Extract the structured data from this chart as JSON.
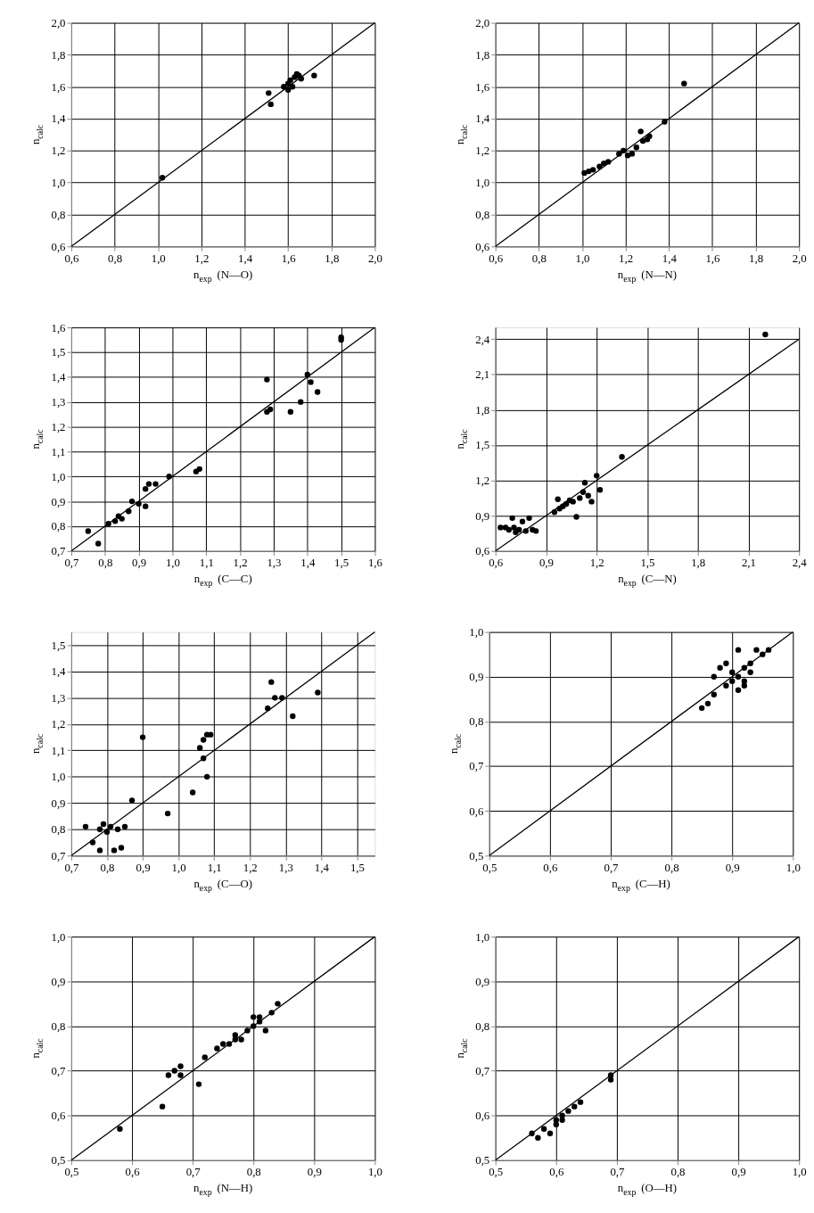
{
  "chart_data": [
    {
      "type": "scatter",
      "xlabel": "n$_{exp}$ (N—O)",
      "ylabel": "n$_{calc}$",
      "xlim": [
        0.6,
        2.0
      ],
      "ylim": [
        0.6,
        2.0
      ],
      "xticks": [
        {
          "value": 0.6,
          "label": "0,6"
        },
        {
          "value": 0.8,
          "label": "0,8"
        },
        {
          "value": 1.0,
          "label": "1,0"
        },
        {
          "value": 1.2,
          "label": "1,2"
        },
        {
          "value": 1.4,
          "label": "1,4"
        },
        {
          "value": 1.6,
          "label": "1,6"
        },
        {
          "value": 1.8,
          "label": "1,8"
        },
        {
          "value": 2.0,
          "label": "2,0"
        }
      ],
      "yticks": [
        {
          "value": 0.6,
          "label": "0,6"
        },
        {
          "value": 0.8,
          "label": "0,8"
        },
        {
          "value": 1.0,
          "label": "1,0"
        },
        {
          "value": 1.2,
          "label": "1,2"
        },
        {
          "value": 1.4,
          "label": "1,4"
        },
        {
          "value": 1.6,
          "label": "1,6"
        },
        {
          "value": 1.8,
          "label": "1,8"
        },
        {
          "value": 2.0,
          "label": "2,0"
        }
      ],
      "grid": true,
      "series": [
        {
          "marker": "circle",
          "color": "#000000",
          "x": [
            1.02,
            1.51,
            1.52,
            1.58,
            1.6,
            1.61,
            1.62,
            1.63,
            1.64,
            1.65,
            1.66,
            1.72,
            1.6
          ],
          "values": [
            1.03,
            1.56,
            1.49,
            1.6,
            1.62,
            1.64,
            1.6,
            1.66,
            1.68,
            1.67,
            1.65,
            1.67,
            1.58
          ]
        },
        {
          "type": "line",
          "color": "#000000",
          "line_style": "solid",
          "x": [
            0.6,
            2.0
          ],
          "values": [
            0.6,
            2.0
          ]
        }
      ]
    },
    {
      "type": "scatter",
      "xlabel": "n$_{exp}$ (N—N)",
      "ylabel": "n$_{calc}$",
      "xlim": [
        0.6,
        2.0
      ],
      "ylim": [
        0.6,
        2.0
      ],
      "xticks": [
        {
          "value": 0.6,
          "label": "0,6"
        },
        {
          "value": 0.8,
          "label": "0,8"
        },
        {
          "value": 1.0,
          "label": "1,0"
        },
        {
          "value": 1.2,
          "label": "1,2"
        },
        {
          "value": 1.4,
          "label": "1,4"
        },
        {
          "value": 1.6,
          "label": "1,6"
        },
        {
          "value": 1.8,
          "label": "1,8"
        },
        {
          "value": 2.0,
          "label": "2,0"
        }
      ],
      "yticks": [
        {
          "value": 0.6,
          "label": "0,6"
        },
        {
          "value": 0.8,
          "label": "0,8"
        },
        {
          "value": 1.0,
          "label": "1,0"
        },
        {
          "value": 1.2,
          "label": "1,2"
        },
        {
          "value": 1.4,
          "label": "1,4"
        },
        {
          "value": 1.6,
          "label": "1,6"
        },
        {
          "value": 1.8,
          "label": "1,8"
        },
        {
          "value": 2.0,
          "label": "2,0"
        }
      ],
      "grid": true,
      "series": [
        {
          "marker": "circle",
          "color": "#000000",
          "x": [
            1.01,
            1.03,
            1.05,
            1.08,
            1.1,
            1.12,
            1.17,
            1.19,
            1.21,
            1.23,
            1.25,
            1.27,
            1.28,
            1.3,
            1.31,
            1.38,
            1.47
          ],
          "values": [
            1.06,
            1.07,
            1.08,
            1.1,
            1.12,
            1.13,
            1.18,
            1.2,
            1.17,
            1.18,
            1.22,
            1.32,
            1.26,
            1.27,
            1.29,
            1.38,
            1.62
          ]
        },
        {
          "type": "line",
          "color": "#000000",
          "line_style": "solid",
          "x": [
            0.6,
            2.0
          ],
          "values": [
            0.6,
            2.0
          ]
        }
      ]
    },
    {
      "type": "scatter",
      "xlabel": "n$_{exp}$ (C—C)",
      "ylabel": "n$_{calc}$",
      "xlim": [
        0.7,
        1.6
      ],
      "ylim": [
        0.7,
        1.6
      ],
      "xticks": [
        {
          "value": 0.7,
          "label": "0,7"
        },
        {
          "value": 0.8,
          "label": "0,8"
        },
        {
          "value": 0.9,
          "label": "0,9"
        },
        {
          "value": 1.0,
          "label": "1,0"
        },
        {
          "value": 1.1,
          "label": "1,1"
        },
        {
          "value": 1.2,
          "label": "1,2"
        },
        {
          "value": 1.3,
          "label": "1,3"
        },
        {
          "value": 1.4,
          "label": "1,4"
        },
        {
          "value": 1.5,
          "label": "1,5"
        },
        {
          "value": 1.6,
          "label": "1,6"
        }
      ],
      "yticks": [
        {
          "value": 0.7,
          "label": "0,7"
        },
        {
          "value": 0.8,
          "label": "0,8"
        },
        {
          "value": 0.9,
          "label": "0,9"
        },
        {
          "value": 1.0,
          "label": "1,0"
        },
        {
          "value": 1.1,
          "label": "1,1"
        },
        {
          "value": 1.2,
          "label": "1,2"
        },
        {
          "value": 1.3,
          "label": "1,3"
        },
        {
          "value": 1.4,
          "label": "1,4"
        },
        {
          "value": 1.5,
          "label": "1,5"
        },
        {
          "value": 1.6,
          "label": "1,6"
        }
      ],
      "grid": true,
      "series": [
        {
          "marker": "circle",
          "color": "#000000",
          "x": [
            0.75,
            0.78,
            0.81,
            0.83,
            0.84,
            0.85,
            0.87,
            0.88,
            0.9,
            0.92,
            0.92,
            0.93,
            0.95,
            0.99,
            1.07,
            1.08,
            1.28,
            1.28,
            1.29,
            1.35,
            1.38,
            1.4,
            1.41,
            1.43,
            1.5,
            1.5
          ],
          "values": [
            0.78,
            0.73,
            0.81,
            0.82,
            0.84,
            0.83,
            0.86,
            0.9,
            0.89,
            0.88,
            0.95,
            0.97,
            0.97,
            1.0,
            1.02,
            1.03,
            1.39,
            1.26,
            1.27,
            1.26,
            1.3,
            1.41,
            1.38,
            1.34,
            1.55,
            1.56
          ]
        },
        {
          "type": "line",
          "color": "#000000",
          "line_style": "solid",
          "x": [
            0.7,
            1.6
          ],
          "values": [
            0.7,
            1.6
          ]
        }
      ]
    },
    {
      "type": "scatter",
      "xlabel": "n$_{exp}$ (C—N)",
      "ylabel": "n$_{calc}$",
      "xlim": [
        0.6,
        2.4
      ],
      "ylim": [
        0.6,
        2.5
      ],
      "xticks": [
        {
          "value": 0.6,
          "label": "0,6"
        },
        {
          "value": 0.9,
          "label": "0,9"
        },
        {
          "value": 1.2,
          "label": "1,2"
        },
        {
          "value": 1.5,
          "label": "1,5"
        },
        {
          "value": 1.8,
          "label": "1,8"
        },
        {
          "value": 2.1,
          "label": "2,1"
        },
        {
          "value": 2.4,
          "label": "2,4"
        }
      ],
      "yticks": [
        {
          "value": 0.6,
          "label": "0,6"
        },
        {
          "value": 0.9,
          "label": "0,9"
        },
        {
          "value": 1.2,
          "label": "1,2"
        },
        {
          "value": 1.5,
          "label": "1,5"
        },
        {
          "value": 1.8,
          "label": "1,8"
        },
        {
          "value": 2.1,
          "label": "2,1"
        },
        {
          "value": 2.4,
          "label": "2,4"
        }
      ],
      "grid": true,
      "series": [
        {
          "marker": "circle",
          "color": "#000000",
          "x": [
            0.63,
            0.66,
            0.68,
            0.7,
            0.71,
            0.72,
            0.74,
            0.76,
            0.78,
            0.8,
            0.82,
            0.84,
            0.95,
            0.97,
            0.98,
            1.0,
            1.02,
            1.04,
            1.06,
            1.08,
            1.1,
            1.12,
            1.13,
            1.15,
            1.17,
            1.2,
            1.22,
            1.35,
            2.2
          ],
          "values": [
            0.8,
            0.8,
            0.78,
            0.88,
            0.8,
            0.76,
            0.78,
            0.85,
            0.77,
            0.88,
            0.78,
            0.77,
            0.93,
            1.04,
            0.96,
            0.98,
            1.0,
            1.03,
            1.02,
            0.89,
            1.05,
            1.1,
            1.18,
            1.07,
            1.02,
            1.24,
            1.12,
            1.4,
            2.44
          ]
        },
        {
          "type": "line",
          "color": "#000000",
          "line_style": "solid",
          "x": [
            0.6,
            2.4
          ],
          "values": [
            0.6,
            2.4
          ]
        }
      ]
    },
    {
      "type": "scatter",
      "xlabel": "n$_{exp}$ (C—O)",
      "ylabel": "n$_{calc}$",
      "xlim": [
        0.7,
        1.55
      ],
      "ylim": [
        0.7,
        1.55
      ],
      "xticks": [
        {
          "value": 0.7,
          "label": "0,7"
        },
        {
          "value": 0.8,
          "label": "0,8"
        },
        {
          "value": 0.9,
          "label": "0,9"
        },
        {
          "value": 1.0,
          "label": "1,0"
        },
        {
          "value": 1.1,
          "label": "1,1"
        },
        {
          "value": 1.2,
          "label": "1,2"
        },
        {
          "value": 1.3,
          "label": "1,3"
        },
        {
          "value": 1.4,
          "label": "1,4"
        },
        {
          "value": 1.5,
          "label": "1,5"
        }
      ],
      "yticks": [
        {
          "value": 0.7,
          "label": "0,7"
        },
        {
          "value": 0.8,
          "label": "0,8"
        },
        {
          "value": 0.9,
          "label": "0,9"
        },
        {
          "value": 1.0,
          "label": "1,0"
        },
        {
          "value": 1.1,
          "label": "1,1"
        },
        {
          "value": 1.2,
          "label": "1,2"
        },
        {
          "value": 1.3,
          "label": "1,3"
        },
        {
          "value": 1.4,
          "label": "1,4"
        },
        {
          "value": 1.5,
          "label": "1,5"
        }
      ],
      "grid": true,
      "series": [
        {
          "marker": "circle",
          "color": "#000000",
          "x": [
            0.74,
            0.76,
            0.78,
            0.78,
            0.79,
            0.8,
            0.81,
            0.82,
            0.83,
            0.84,
            0.85,
            0.87,
            0.9,
            0.97,
            1.04,
            1.06,
            1.07,
            1.07,
            1.08,
            1.08,
            1.09,
            1.25,
            1.26,
            1.27,
            1.29,
            1.32,
            1.39
          ],
          "values": [
            0.81,
            0.75,
            0.72,
            0.8,
            0.82,
            0.79,
            0.81,
            0.72,
            0.8,
            0.73,
            0.81,
            0.91,
            1.15,
            0.86,
            0.94,
            1.11,
            1.07,
            1.14,
            1.0,
            1.16,
            1.16,
            1.26,
            1.36,
            1.3,
            1.3,
            1.23,
            1.32
          ]
        },
        {
          "type": "line",
          "color": "#000000",
          "line_style": "solid",
          "x": [
            0.7,
            1.55
          ],
          "values": [
            0.7,
            1.55
          ]
        }
      ]
    },
    {
      "type": "scatter",
      "xlabel": "n$_{exp}$ (C—H)",
      "ylabel": "n$_{calc}$",
      "xlim": [
        0.5,
        1.0
      ],
      "ylim": [
        0.5,
        1.0
      ],
      "xticks": [
        {
          "value": 0.5,
          "label": "0,5"
        },
        {
          "value": 0.6,
          "label": "0,6"
        },
        {
          "value": 0.7,
          "label": "0,7"
        },
        {
          "value": 0.8,
          "label": "0,8"
        },
        {
          "value": 0.9,
          "label": "0,9"
        },
        {
          "value": 1.0,
          "label": "1,0"
        }
      ],
      "yticks": [
        {
          "value": 0.5,
          "label": "0,5"
        },
        {
          "value": 0.6,
          "label": "0,6"
        },
        {
          "value": 0.7,
          "label": "0,7"
        },
        {
          "value": 0.8,
          "label": "0,8"
        },
        {
          "value": 0.9,
          "label": "0,9"
        },
        {
          "value": 1.0,
          "label": "1,0"
        }
      ],
      "grid": true,
      "series": [
        {
          "marker": "circle",
          "color": "#000000",
          "x": [
            0.85,
            0.86,
            0.87,
            0.88,
            0.87,
            0.89,
            0.89,
            0.9,
            0.9,
            0.91,
            0.91,
            0.91,
            0.92,
            0.92,
            0.93,
            0.93,
            0.94,
            0.95,
            0.96,
            0.92
          ],
          "values": [
            0.83,
            0.84,
            0.86,
            0.92,
            0.9,
            0.88,
            0.93,
            0.89,
            0.91,
            0.87,
            0.9,
            0.96,
            0.89,
            0.92,
            0.91,
            0.93,
            0.96,
            0.95,
            0.96,
            0.88
          ]
        },
        {
          "type": "line",
          "color": "#000000",
          "line_style": "solid",
          "x": [
            0.5,
            1.0
          ],
          "values": [
            0.5,
            1.0
          ]
        }
      ]
    },
    {
      "type": "scatter",
      "xlabel": "n$_{exp}$ (N—H)",
      "ylabel": "n$_{calc}$",
      "xlim": [
        0.5,
        1.0
      ],
      "ylim": [
        0.5,
        1.0
      ],
      "xticks": [
        {
          "value": 0.5,
          "label": "0,5"
        },
        {
          "value": 0.6,
          "label": "0,6"
        },
        {
          "value": 0.7,
          "label": "0,7"
        },
        {
          "value": 0.8,
          "label": "0,8"
        },
        {
          "value": 0.9,
          "label": "0,9"
        },
        {
          "value": 1.0,
          "label": "1,0"
        }
      ],
      "yticks": [
        {
          "value": 0.5,
          "label": "0,5"
        },
        {
          "value": 0.6,
          "label": "0,6"
        },
        {
          "value": 0.7,
          "label": "0,7"
        },
        {
          "value": 0.8,
          "label": "0,8"
        },
        {
          "value": 0.9,
          "label": "0,9"
        },
        {
          "value": 1.0,
          "label": "1,0"
        }
      ],
      "grid": true,
      "series": [
        {
          "marker": "circle",
          "color": "#000000",
          "x": [
            0.58,
            0.65,
            0.66,
            0.67,
            0.68,
            0.68,
            0.71,
            0.72,
            0.74,
            0.75,
            0.76,
            0.77,
            0.77,
            0.78,
            0.79,
            0.8,
            0.8,
            0.81,
            0.81,
            0.82,
            0.83,
            0.84
          ],
          "values": [
            0.57,
            0.62,
            0.69,
            0.7,
            0.69,
            0.71,
            0.67,
            0.73,
            0.75,
            0.76,
            0.76,
            0.77,
            0.78,
            0.77,
            0.79,
            0.8,
            0.82,
            0.81,
            0.82,
            0.79,
            0.83,
            0.85
          ]
        },
        {
          "type": "line",
          "color": "#000000",
          "line_style": "solid",
          "x": [
            0.5,
            1.0
          ],
          "values": [
            0.5,
            1.0
          ]
        }
      ]
    },
    {
      "type": "scatter",
      "xlabel": "n$_{exp}$ (O—H)",
      "ylabel": "n$_{calc}$",
      "xlim": [
        0.5,
        1.0
      ],
      "ylim": [
        0.5,
        1.0
      ],
      "xticks": [
        {
          "value": 0.5,
          "label": "0,5"
        },
        {
          "value": 0.6,
          "label": "0,6"
        },
        {
          "value": 0.7,
          "label": "0,7"
        },
        {
          "value": 0.8,
          "label": "0,8"
        },
        {
          "value": 0.9,
          "label": "0,9"
        },
        {
          "value": 1.0,
          "label": "1,0"
        }
      ],
      "yticks": [
        {
          "value": 0.5,
          "label": "0,5"
        },
        {
          "value": 0.6,
          "label": "0,6"
        },
        {
          "value": 0.7,
          "label": "0,7"
        },
        {
          "value": 0.8,
          "label": "0,8"
        },
        {
          "value": 0.9,
          "label": "0,9"
        },
        {
          "value": 1.0,
          "label": "1,0"
        }
      ],
      "grid": true,
      "series": [
        {
          "marker": "circle",
          "color": "#000000",
          "x": [
            0.56,
            0.57,
            0.58,
            0.59,
            0.6,
            0.6,
            0.61,
            0.61,
            0.62,
            0.63,
            0.64,
            0.69,
            0.69
          ],
          "values": [
            0.56,
            0.55,
            0.57,
            0.56,
            0.58,
            0.59,
            0.59,
            0.6,
            0.61,
            0.62,
            0.63,
            0.68,
            0.69
          ]
        },
        {
          "type": "line",
          "color": "#000000",
          "line_style": "solid",
          "x": [
            0.5,
            1.0
          ],
          "values": [
            0.5,
            1.0
          ]
        }
      ]
    }
  ]
}
